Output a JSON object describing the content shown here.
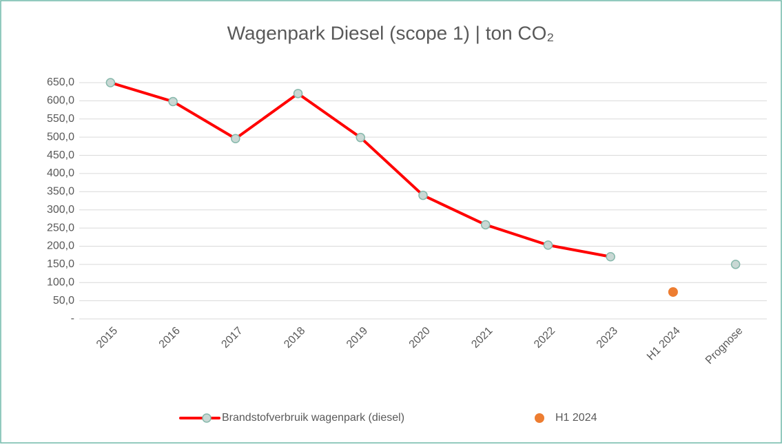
{
  "chart_data": {
    "type": "line",
    "title": "Wagenpark Diesel (scope 1) | ton CO₂",
    "categories": [
      "2015",
      "2016",
      "2017",
      "2018",
      "2019",
      "2020",
      "2021",
      "2022",
      "2023",
      "H1 2024",
      "Prognose"
    ],
    "series": [
      {
        "name": "Brandstofverbruik wagenpark (diesel)",
        "color": "#ff0000",
        "marker_color": "#c9d8d4",
        "line": true,
        "values": [
          650,
          598,
          496,
          620,
          499,
          340,
          259,
          203,
          171,
          null,
          150
        ]
      },
      {
        "name": "H1 2024",
        "color": "#ed7d31",
        "marker_color": "#ed7d31",
        "line": false,
        "values": [
          null,
          null,
          null,
          null,
          null,
          null,
          null,
          null,
          null,
          74,
          null
        ]
      }
    ],
    "ylim": [
      0,
      650
    ],
    "yticks": [
      {
        "value": 0,
        "label": "-"
      },
      {
        "value": 50,
        "label": "50,0"
      },
      {
        "value": 100,
        "label": "100,0"
      },
      {
        "value": 150,
        "label": "150,0"
      },
      {
        "value": 200,
        "label": "200,0"
      },
      {
        "value": 250,
        "label": "250,0"
      },
      {
        "value": 300,
        "label": "300,0"
      },
      {
        "value": 350,
        "label": "350,0"
      },
      {
        "value": 400,
        "label": "400,0"
      },
      {
        "value": 450,
        "label": "450,0"
      },
      {
        "value": 500,
        "label": "500,0"
      },
      {
        "value": 550,
        "label": "550,0"
      },
      {
        "value": 600,
        "label": "600,0"
      },
      {
        "value": 650,
        "label": "650,0"
      }
    ],
    "grid": true,
    "legend": "bottom"
  }
}
